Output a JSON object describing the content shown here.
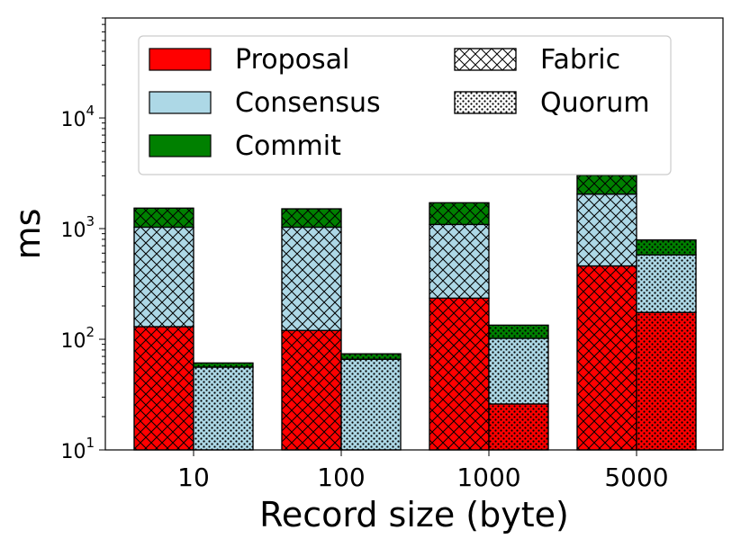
{
  "chart_data": {
    "type": "bar",
    "stacked": true,
    "grouped": true,
    "ylog": true,
    "ylim": [
      10,
      80000
    ],
    "xlabel": "Record size (byte)",
    "ylabel": "ms",
    "categories": [
      "10",
      "100",
      "1000",
      "5000"
    ],
    "yticks": [
      {
        "value": 10,
        "base": "10",
        "exp": "1"
      },
      {
        "value": 100,
        "base": "10",
        "exp": "2"
      },
      {
        "value": 1000,
        "base": "10",
        "exp": "3"
      },
      {
        "value": 10000,
        "base": "10",
        "exp": "4"
      }
    ],
    "systems": [
      {
        "name": "Fabric",
        "pattern": "crosshatch",
        "proposal": [
          130,
          120,
          235,
          460
        ],
        "consensus": [
          900,
          910,
          855,
          1590
        ],
        "commit": [
          500,
          480,
          620,
          980
        ]
      },
      {
        "name": "Quorum",
        "pattern": "dots",
        "proposal": [
          10,
          10,
          26,
          175
        ],
        "consensus": [
          46,
          56,
          76,
          405
        ],
        "commit": [
          5,
          8,
          32,
          210
        ]
      }
    ],
    "stages": [
      {
        "name": "Proposal",
        "color": "#ff0000"
      },
      {
        "name": "Consensus",
        "color": "#add8e6"
      },
      {
        "name": "Commit",
        "color": "#008000"
      }
    ],
    "legend": {
      "position": "top",
      "entries": [
        "Proposal",
        "Consensus",
        "Commit",
        "Fabric",
        "Quorum"
      ]
    }
  }
}
